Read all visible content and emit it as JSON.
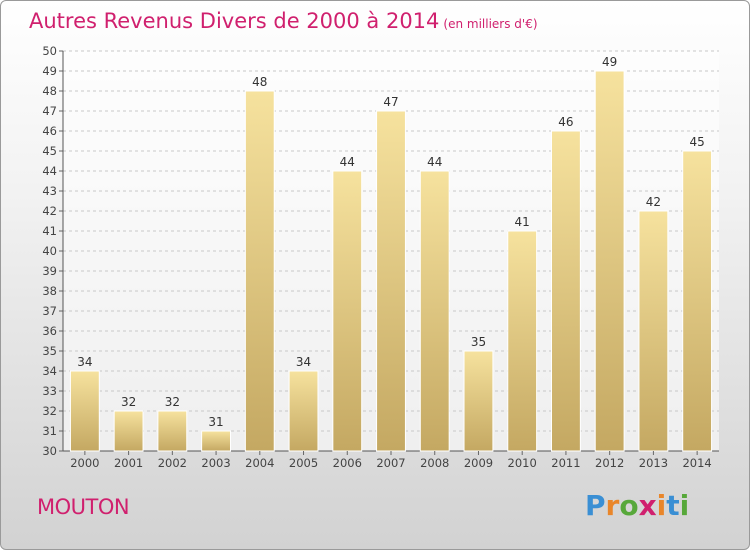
{
  "title": "Autres Revenus Divers de 2000 à 2014",
  "title_unit": "(en milliers d'€)",
  "location_label": "MOUTON",
  "logo": {
    "text": "Proxiti",
    "letter_colors": [
      "#3a8fd4",
      "#e9862a",
      "#57a83a",
      "#d0206e",
      "#e9862a",
      "#3a8fd4",
      "#57a83a"
    ]
  },
  "colors": {
    "title": "#d0206e",
    "bar_top": "#f6e29e",
    "bar_bottom": "#c4a862",
    "grid": "#c8c8c8"
  },
  "chart_data": {
    "type": "bar",
    "title": "Autres Revenus Divers de 2000 à 2014",
    "categories": [
      "2000",
      "2001",
      "2002",
      "2003",
      "2004",
      "2005",
      "2006",
      "2007",
      "2008",
      "2009",
      "2010",
      "2011",
      "2012",
      "2013",
      "2014"
    ],
    "values": [
      34,
      32,
      32,
      31,
      48,
      34,
      44,
      47,
      44,
      35,
      41,
      46,
      49,
      42,
      45
    ],
    "ylim": [
      30,
      50
    ],
    "ytick_step": 1,
    "grid": true,
    "data_labels": true
  }
}
